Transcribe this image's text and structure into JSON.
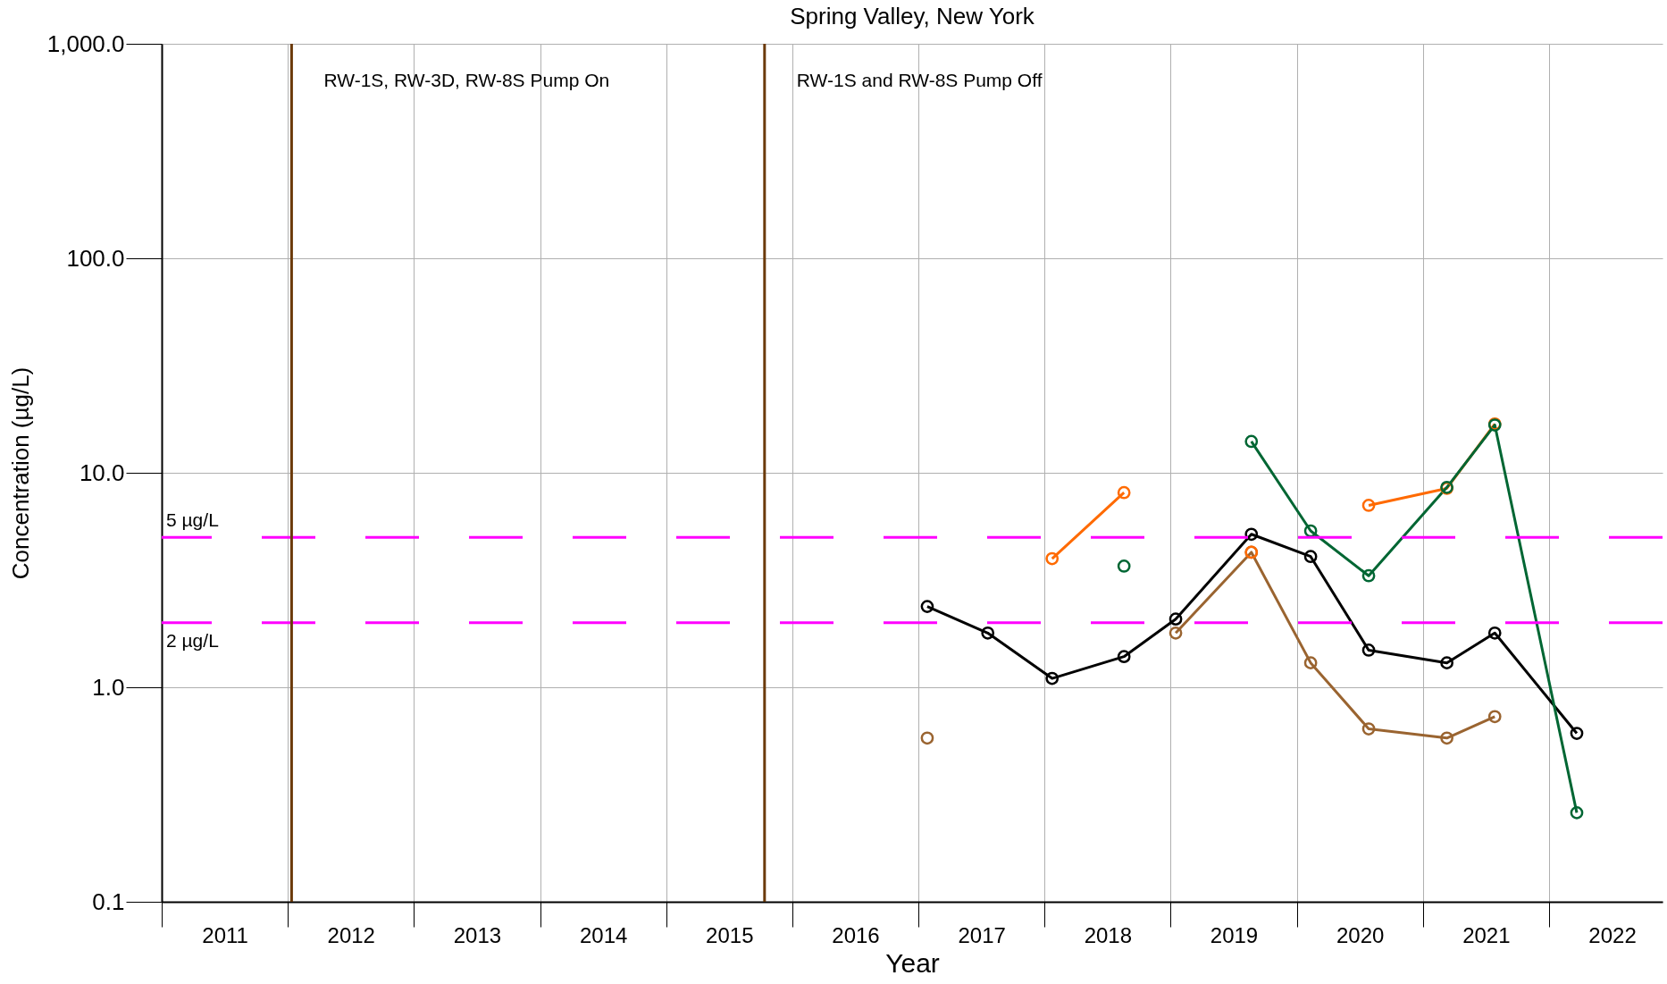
{
  "chart_data": {
    "type": "line",
    "title": "Spring Valley, New York",
    "xlabel": "Year",
    "ylabel": "Concentration (µg/L)",
    "x": [
      2017.07,
      2017.55,
      2018.06,
      2018.63,
      2019.04,
      2019.64,
      2020.11,
      2020.57,
      2021.19,
      2021.57,
      2022.22
    ],
    "series": [
      {
        "color": "#000000",
        "values": [
          2.38,
          1.79,
          1.1,
          1.39,
          2.08,
          5.17,
          4.07,
          1.49,
          1.3,
          1.79,
          0.61
        ]
      },
      {
        "color": "#9a6430",
        "values": [
          0.58,
          null,
          null,
          null,
          1.79,
          4.26,
          1.3,
          0.64,
          0.58,
          0.73,
          null
        ]
      },
      {
        "color": "#ff6a00",
        "values": [
          null,
          null,
          3.98,
          8.08,
          null,
          4.26,
          null,
          7.05,
          8.46,
          16.9,
          null
        ]
      },
      {
        "color": "#006633",
        "values": [
          null,
          null,
          null,
          3.67,
          null,
          14.0,
          5.36,
          3.31,
          8.55,
          16.7,
          0.26
        ]
      }
    ],
    "log": true,
    "ylim": [
      0.1,
      1000
    ],
    "yticks": [
      {
        "value": 0.1,
        "label": "0.1"
      },
      {
        "value": 1,
        "label": "1.0"
      },
      {
        "value": 10,
        "label": "10.0"
      },
      {
        "value": 100,
        "label": "100.0"
      },
      {
        "value": 1000,
        "label": "1,000.0"
      }
    ],
    "xlim": [
      2011,
      2022.9
    ],
    "xticks": [
      {
        "value": 2011,
        "label": null
      },
      {
        "value": 2011.5,
        "label": "2011"
      },
      {
        "value": 2012,
        "label": null
      },
      {
        "value": 2012.5,
        "label": "2012"
      },
      {
        "value": 2013,
        "label": null
      },
      {
        "value": 2013.5,
        "label": "2013"
      },
      {
        "value": 2014,
        "label": null
      },
      {
        "value": 2014.5,
        "label": "2014"
      },
      {
        "value": 2015,
        "label": null
      },
      {
        "value": 2015.5,
        "label": "2015"
      },
      {
        "value": 2016,
        "label": null
      },
      {
        "value": 2016.5,
        "label": "2016"
      },
      {
        "value": 2017,
        "label": null
      },
      {
        "value": 2017.5,
        "label": "2017"
      },
      {
        "value": 2018,
        "label": null
      },
      {
        "value": 2018.5,
        "label": "2018"
      },
      {
        "value": 2019,
        "label": null
      },
      {
        "value": 2019.5,
        "label": "2019"
      },
      {
        "value": 2020,
        "label": null
      },
      {
        "value": 2020.5,
        "label": "2020"
      },
      {
        "value": 2021,
        "label": null
      },
      {
        "value": 2021.5,
        "label": "2021"
      },
      {
        "value": 2022,
        "label": null
      },
      {
        "value": 2022.5,
        "label": "2022"
      }
    ],
    "ref_lines": [
      {
        "axis": "y",
        "value": 5,
        "label": "5 µg/L",
        "color": "#ff00ff",
        "line_style": "dashed"
      },
      {
        "axis": "y",
        "value": 2,
        "label": "2 µg/L",
        "color": "#ff00ff",
        "line_style": "dashed"
      },
      {
        "axis": "x",
        "value": 2012.03,
        "label": "RW-1S, RW-3D, RW-8S Pump On",
        "color": "#6b3a0a"
      },
      {
        "axis": "x",
        "value": 2015.78,
        "label": "RW-1S and RW-8S Pump Off",
        "color": "#6b3a0a"
      }
    ],
    "grid": true,
    "marker": "circle",
    "line_style": "solid",
    "legend": false
  }
}
